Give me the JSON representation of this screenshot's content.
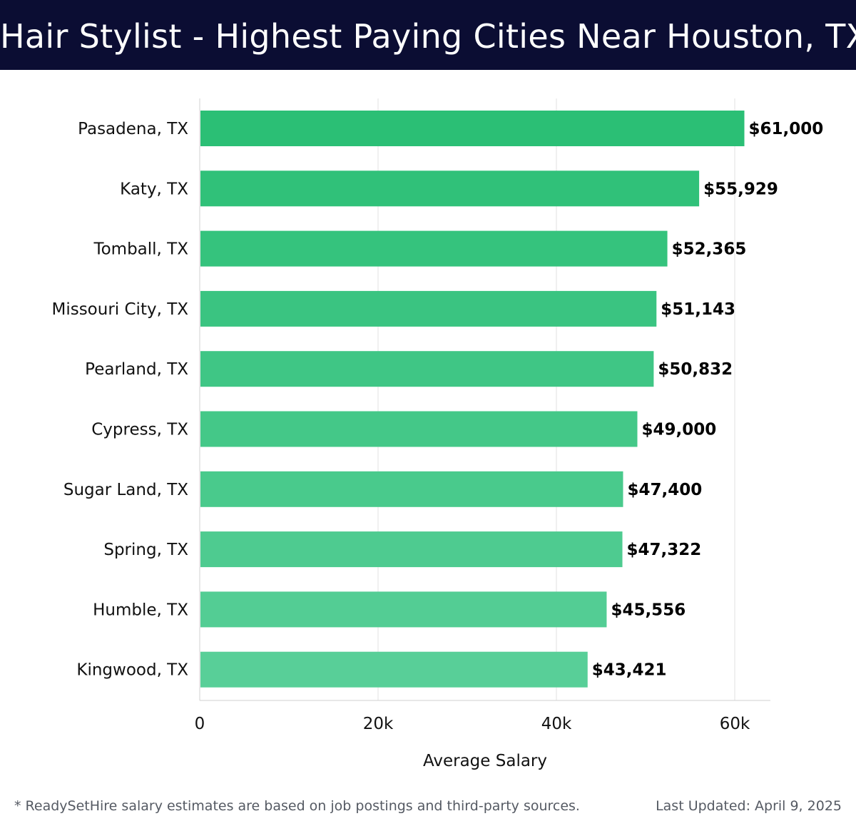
{
  "header": {
    "title": "Hair Stylist - Highest Paying Cities Near Houston, TX"
  },
  "chart_data": {
    "type": "bar",
    "orientation": "horizontal",
    "title": "Hair Stylist - Highest Paying Cities Near Houston, TX",
    "categories": [
      "Pasadena, TX",
      "Katy, TX",
      "Tomball, TX",
      "Missouri City, TX",
      "Pearland, TX",
      "Cypress, TX",
      "Sugar Land, TX",
      "Spring, TX",
      "Humble, TX",
      "Kingwood, TX"
    ],
    "values": [
      61000,
      55929,
      52365,
      51143,
      50832,
      49000,
      47400,
      47322,
      45556,
      43421
    ],
    "value_labels": [
      "$61,000",
      "$55,929",
      "$52,365",
      "$51,143",
      "$50,832",
      "$49,000",
      "$47,400",
      "$47,322",
      "$45,556",
      "$43,421"
    ],
    "xlabel": "Average Salary",
    "ylabel": "",
    "xlim": [
      0,
      64000
    ],
    "xticks": [
      0,
      20000,
      40000,
      60000
    ],
    "xtick_labels": [
      "0",
      "20k",
      "40k",
      "60k"
    ],
    "grid": true,
    "colors": {
      "bar_top": "#2bbf75",
      "bar_bottom": "#58cf98",
      "grid": "#e2e2e2",
      "axis": "#d0d0d0"
    }
  },
  "footer": {
    "note": "* ReadySetHire salary estimates are based on job postings and third-party sources.",
    "updated": "Last Updated: April 9, 2025"
  }
}
